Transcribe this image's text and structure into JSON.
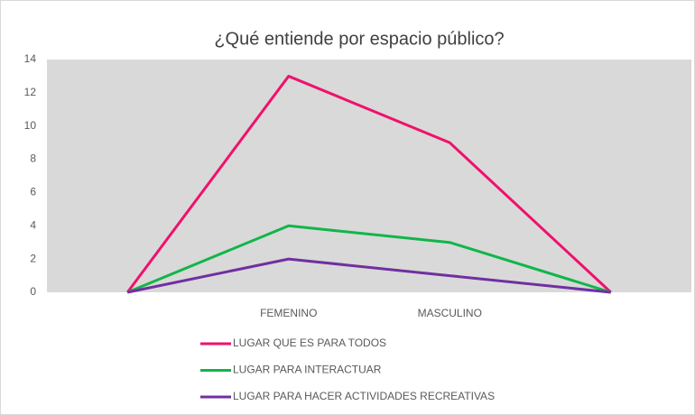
{
  "chart_data": {
    "type": "line",
    "title": "¿Qué entiende por espacio público?",
    "categories": [
      null,
      "FEMENINO",
      "MASCULINO",
      null
    ],
    "series": [
      {
        "name": "LUGAR QUE ES PARA TODOS",
        "color": "#f0116b",
        "values": [
          0,
          13,
          9,
          0
        ]
      },
      {
        "name": "LUGAR PARA INTERACTUAR",
        "color": "#12b54a",
        "values": [
          0,
          4,
          3,
          0
        ]
      },
      {
        "name": "LUGAR PARA HACER ACTIVIDADES RECREATIVAS",
        "color": "#7030a0",
        "values": [
          0,
          2,
          1,
          0
        ]
      }
    ],
    "ylim": [
      0,
      14
    ],
    "yticks": [
      0,
      2,
      4,
      6,
      8,
      10,
      12,
      14
    ],
    "grid": false,
    "plot_background": "#d9d9d9",
    "legend": "bottom"
  }
}
